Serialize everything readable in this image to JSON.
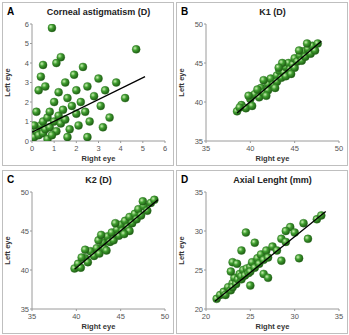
{
  "chart_data": [
    {
      "type": "scatter",
      "panel": "A",
      "title": "Corneal astigmatism (D)",
      "x_label": "Right eye",
      "y_label": "Left eye",
      "xlim": [
        0,
        6
      ],
      "xticks": [
        0,
        1,
        2,
        3,
        4,
        5,
        6
      ],
      "ylim": [
        0,
        6
      ],
      "yticks": [
        0,
        1,
        2,
        3,
        4,
        5,
        6
      ],
      "grid": false,
      "series": [
        {
          "type": "scatter",
          "marker": "circle",
          "color": "#3f9e2f",
          "x": [
            0.1,
            0.2,
            0.3,
            0.4,
            0.5,
            0.5,
            0.6,
            0.7,
            0.8,
            0.8,
            0.9,
            1.0,
            1.0,
            1.1,
            1.2,
            1.2,
            1.3,
            1.4,
            1.5,
            1.5,
            1.6,
            1.7,
            1.8,
            1.9,
            2.0,
            2.0,
            2.1,
            2.2,
            2.3,
            2.4,
            2.5,
            2.6,
            2.8,
            3.0,
            3.1,
            3.3,
            3.5,
            3.8,
            4.2,
            4.7,
            0.2,
            0.3,
            0.4,
            0.1,
            0.6,
            0.7,
            0.9,
            1.3,
            0.5,
            1.1,
            2.5,
            1.6,
            3.2
          ],
          "values": [
            0.2,
            0.5,
            0.3,
            0.8,
            0.4,
            1.0,
            0.6,
            1.2,
            0.7,
            1.5,
            5.8,
            1.0,
            2.0,
            0.5,
            1.3,
            2.5,
            0.9,
            1.6,
            3.0,
            1.1,
            2.2,
            0.6,
            1.8,
            3.4,
            1.4,
            2.6,
            0.8,
            2.0,
            3.8,
            1.5,
            2.8,
            1.0,
            2.3,
            3.2,
            1.8,
            2.6,
            1.2,
            3.0,
            2.2,
            4.7,
            1.5,
            2.6,
            3.3,
            0.8,
            2.8,
            0.1,
            0.3,
            4.3,
            3.9,
            4.0,
            0.2,
            0.2,
            0.7
          ]
        },
        {
          "type": "line",
          "line_style": "solid",
          "color": "#000000",
          "x": [
            0,
            5.1
          ],
          "values": [
            0.45,
            3.3
          ]
        }
      ]
    },
    {
      "type": "scatter",
      "panel": "B",
      "title": "K1 (D)",
      "x_label": "Right eye",
      "y_label": "Left eye",
      "xlim": [
        35,
        50
      ],
      "xticks": [
        35,
        40,
        45,
        50
      ],
      "ylim": [
        35,
        50
      ],
      "yticks": [
        35,
        40,
        45,
        50
      ],
      "grid": false,
      "series": [
        {
          "type": "scatter",
          "marker": "circle",
          "color": "#3f9e2f",
          "x": [
            38.5,
            39,
            39.5,
            40,
            40.2,
            40.5,
            41,
            41.2,
            41.5,
            42,
            42,
            42.3,
            42.6,
            43,
            43,
            43.3,
            43.5,
            43.8,
            44,
            44,
            44.3,
            44.5,
            44.8,
            45,
            45,
            45.3,
            45.6,
            45.8,
            46,
            46.2,
            46.5,
            46.8,
            47,
            47.3,
            47.6,
            41.5,
            40.8,
            39.8,
            43.6,
            42.8,
            45.5,
            44.6,
            46.4,
            38.8,
            41.8,
            43.2
          ],
          "values": [
            38.8,
            39.6,
            39.2,
            40.4,
            39.5,
            41,
            40.6,
            41.8,
            41.2,
            42.3,
            41.5,
            43,
            42.2,
            43.4,
            42.6,
            44,
            43.1,
            43.8,
            44.5,
            43.3,
            45,
            44.2,
            44.8,
            45.6,
            44.4,
            45.2,
            46,
            45.3,
            46.5,
            45.8,
            46.8,
            46.2,
            47.2,
            46.6,
            47.5,
            42.8,
            41.6,
            40.8,
            45,
            41.8,
            46.6,
            43.6,
            47.5,
            39.3,
            40.8,
            44.4
          ]
        },
        {
          "type": "line",
          "line_style": "solid",
          "color": "#000000",
          "x": [
            38.5,
            48
          ],
          "values": [
            38.6,
            47.8
          ]
        }
      ]
    },
    {
      "type": "scatter",
      "panel": "C",
      "title": "K2 (D)",
      "x_label": "Right eye",
      "y_label": "Left eye",
      "xlim": [
        35,
        50
      ],
      "xticks": [
        35,
        40,
        45,
        50
      ],
      "ylim": [
        35,
        50
      ],
      "yticks": [
        35,
        40,
        45,
        50
      ],
      "grid": false,
      "series": [
        {
          "type": "scatter",
          "marker": "circle",
          "color": "#3f9e2f",
          "x": [
            39.8,
            40.2,
            40.5,
            41,
            41.3,
            41.6,
            42,
            42.3,
            42.6,
            43,
            43.2,
            43.5,
            43.8,
            44,
            44.2,
            44.6,
            44.8,
            45,
            45.2,
            45.5,
            45.8,
            46,
            46.3,
            46.6,
            46.8,
            47,
            47.3,
            47.6,
            48,
            48.4,
            48.8,
            41,
            42.5,
            44.4,
            46,
            47.5,
            43.4,
            45.4,
            40.6,
            42.8
          ],
          "values": [
            40.2,
            40.8,
            40.3,
            41.5,
            41,
            42.4,
            41.8,
            42.8,
            42.1,
            43.5,
            42.7,
            44.3,
            43.6,
            44.8,
            43.8,
            45.2,
            44.4,
            45.8,
            45,
            46.3,
            45.5,
            46.8,
            46,
            47.2,
            46.5,
            47.8,
            47,
            48.2,
            47.6,
            48.6,
            49,
            42.6,
            43.8,
            46,
            45,
            48.8,
            42.5,
            44.6,
            41.6,
            44.5
          ]
        },
        {
          "type": "line",
          "line_style": "solid",
          "color": "#000000",
          "x": [
            39.8,
            49.2
          ],
          "values": [
            40.1,
            49
          ]
        }
      ]
    },
    {
      "type": "scatter",
      "panel": "D",
      "title": "Axial Lenght (mm)",
      "x_label": "Right eye",
      "y_label": "Left eye",
      "xlim": [
        20,
        35
      ],
      "xticks": [
        20,
        25,
        30,
        35
      ],
      "ylim": [
        20,
        35
      ],
      "yticks": [
        20,
        25,
        30,
        35
      ],
      "grid": false,
      "series": [
        {
          "type": "scatter",
          "marker": "circle",
          "color": "#3f9e2f",
          "x": [
            21.2,
            21.6,
            22,
            22.2,
            22.5,
            22.8,
            23,
            23,
            23.2,
            23.4,
            23.6,
            23.8,
            24,
            24,
            24.2,
            24.4,
            24.6,
            24.8,
            25,
            25,
            25.2,
            25.5,
            25.8,
            26,
            26.2,
            26.5,
            26.8,
            27,
            27.5,
            28,
            28.5,
            29,
            29.5,
            30,
            31,
            32.5,
            23,
            24,
            24.5,
            25.5,
            23.5,
            26.5,
            27,
            28.5,
            30.5,
            22.8,
            25,
            29,
            31.5,
            33
          ],
          "values": [
            21.3,
            21.8,
            22.2,
            21.8,
            22.8,
            22.4,
            23.3,
            22.8,
            24,
            23.2,
            23.8,
            24.5,
            23.8,
            24.2,
            25,
            24.3,
            25.2,
            24.6,
            25.4,
            24.8,
            26,
            25.3,
            26.5,
            25.8,
            27,
            26.3,
            27.5,
            26.6,
            28,
            27.5,
            29,
            28.6,
            30.5,
            29.8,
            31,
            31.5,
            26,
            27.5,
            29.8,
            28.5,
            25.8,
            24.5,
            24,
            26.2,
            26.5,
            24.8,
            23,
            30,
            29,
            32
          ]
        },
        {
          "type": "line",
          "line_style": "solid",
          "color": "#000000",
          "x": [
            21,
            33.5
          ],
          "values": [
            21,
            32.5
          ]
        }
      ]
    }
  ]
}
